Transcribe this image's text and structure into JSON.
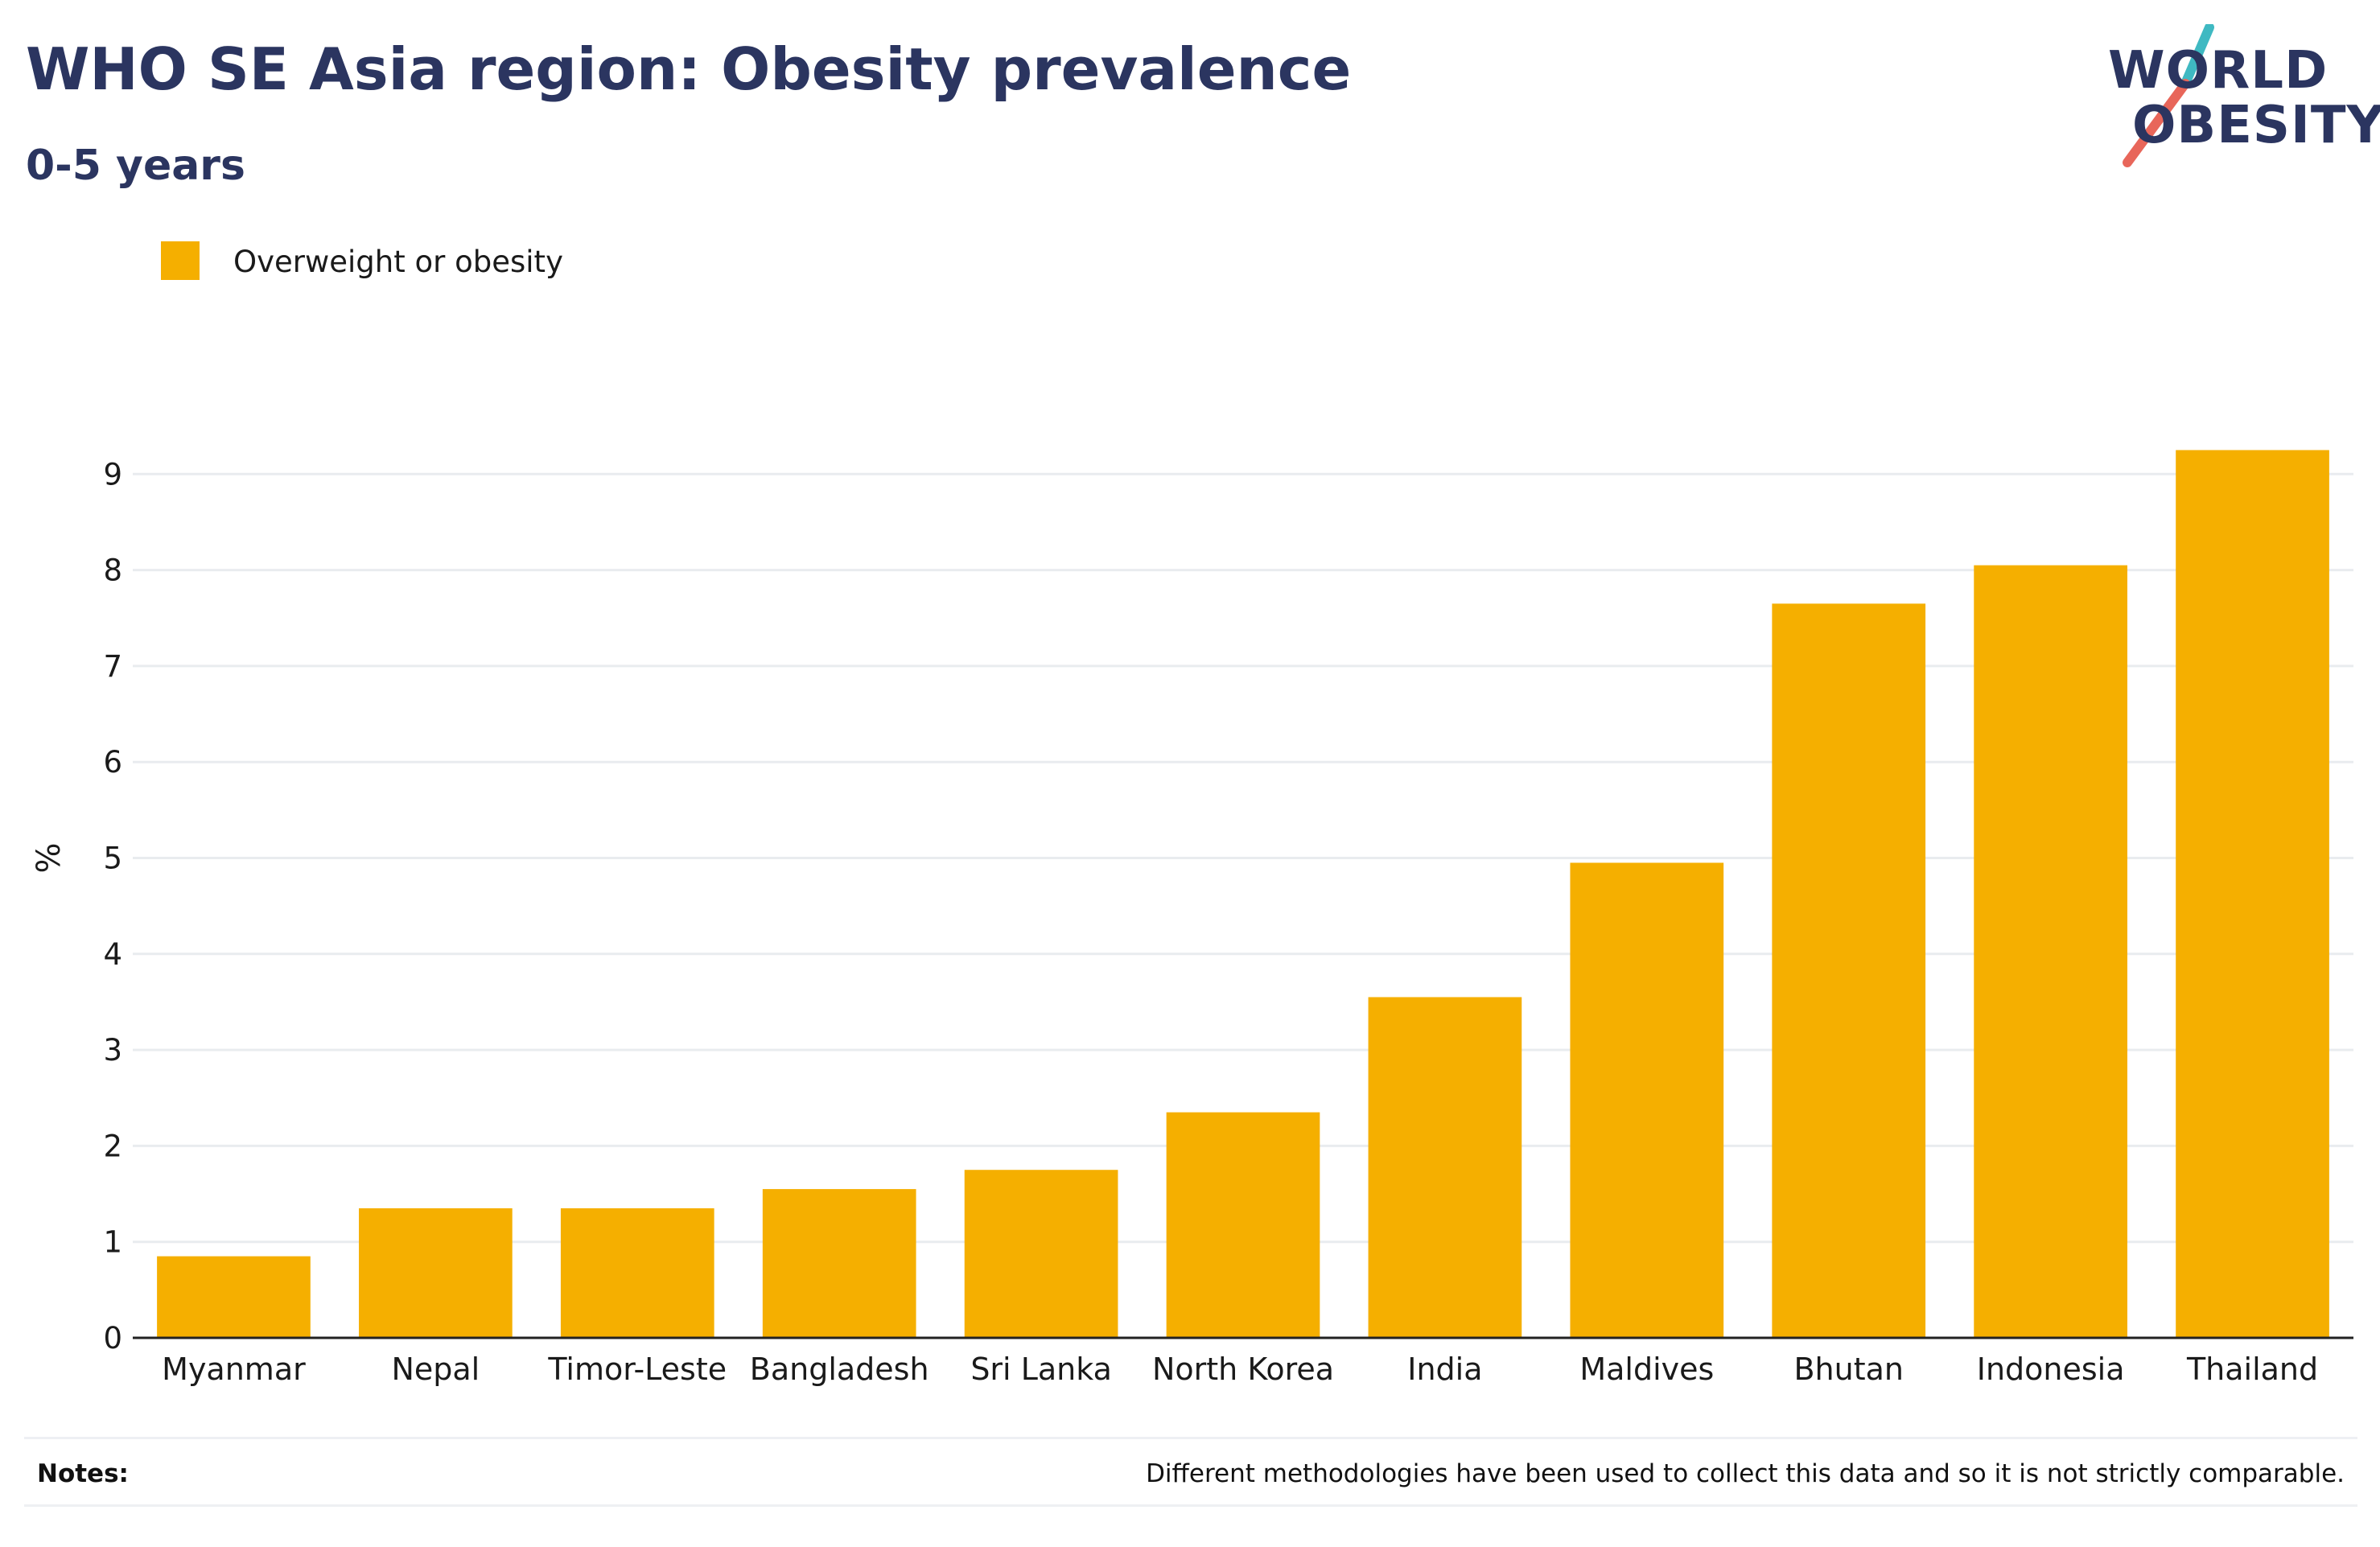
{
  "header": {
    "title": "WHO SE Asia region: Obesity prevalence",
    "subtitle": "0-5 years"
  },
  "logo": {
    "line1": "WORLD",
    "line2": "OBESITY",
    "slash_colors": [
      "#3FB9C2",
      "#E8665A"
    ]
  },
  "legend": {
    "label": "Overweight or obesity"
  },
  "notes": {
    "label": "Notes:",
    "text": "Different methodologies have been used to collect this data and so it is not strictly comparable."
  },
  "colors": {
    "bar": "#F5AF00",
    "text_dark": "#2b3560",
    "gridline": "#e9ecef",
    "axis": "#222222"
  },
  "chart_data": {
    "type": "bar",
    "title": "WHO SE Asia region: Obesity prevalence",
    "subtitle": "0-5 years",
    "xlabel": "",
    "ylabel": "%",
    "ylim": [
      0,
      9.5
    ],
    "yticks": [
      0,
      1,
      2,
      3,
      4,
      5,
      6,
      7,
      8,
      9
    ],
    "grid": true,
    "legend_position": "top-left",
    "categories": [
      "Myanmar",
      "Nepal",
      "Timor-Leste",
      "Bangladesh",
      "Sri Lanka",
      "North Korea",
      "India",
      "Maldives",
      "Bhutan",
      "Indonesia",
      "Thailand"
    ],
    "series": [
      {
        "name": "Overweight or obesity",
        "values": [
          0.85,
          1.35,
          1.35,
          1.55,
          1.75,
          2.35,
          3.55,
          4.95,
          7.65,
          8.05,
          9.25
        ]
      }
    ]
  }
}
